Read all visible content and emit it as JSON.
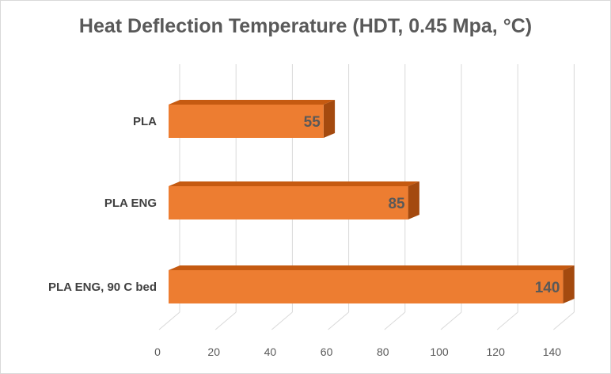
{
  "chart_data": {
    "type": "bar",
    "orientation": "horizontal",
    "three_d": true,
    "title": "Heat Deflection Temperature (HDT, 0.45 Mpa, °C)",
    "categories": [
      "PLA",
      "PLA ENG",
      "PLA ENG, 90 C bed"
    ],
    "values": [
      55,
      85,
      140
    ],
    "data_labels": [
      "55",
      "85",
      "140"
    ],
    "xlim": [
      0,
      140
    ],
    "x_ticks": [
      "0",
      "20",
      "40",
      "60",
      "80",
      "100",
      "120",
      "140"
    ],
    "grid": true,
    "legend": "none",
    "colors": {
      "bar_front": "#ed7d31",
      "bar_top": "#c55a11",
      "bar_side": "#a44a0f",
      "grid": "#d9d9d9",
      "text": "#595959"
    }
  }
}
